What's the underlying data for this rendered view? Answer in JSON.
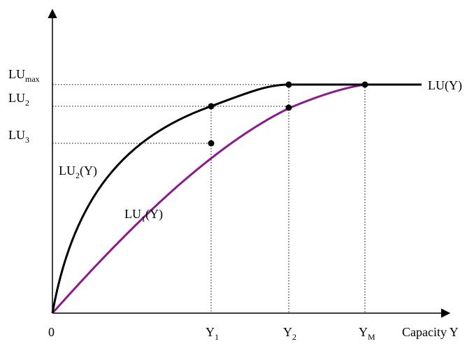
{
  "colors": {
    "curve_lu2": "#000000",
    "curve_lu1": "#8b1a8e",
    "axes": "#000000",
    "guides": "#000000"
  },
  "axes": {
    "origin": "0",
    "x_label": "Capacity Y"
  },
  "x_ticks": [
    {
      "base": "Y",
      "sub": "1"
    },
    {
      "base": "Y",
      "sub": "2"
    },
    {
      "base": "Y",
      "sub": "M"
    }
  ],
  "y_ticks": [
    {
      "base": "LU",
      "sub": "max"
    },
    {
      "base": "LU",
      "sub": "2"
    },
    {
      "base": "LU",
      "sub": "3"
    }
  ],
  "curve_labels": {
    "lu_y": {
      "text": "LU(Y)"
    },
    "lu2_y": {
      "base": "LU",
      "sub": "2",
      "tail": "(Y)"
    },
    "lu1_y": {
      "base": "LU",
      "sub": "1",
      "tail": "(Y)"
    }
  }
}
